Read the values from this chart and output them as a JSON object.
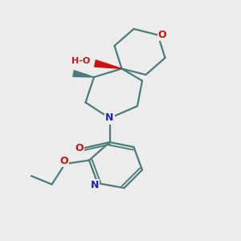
{
  "bg_color": "#ececec",
  "bond_color": "#4a7c7c",
  "bond_width": 1.6,
  "O_red": "#cc1111",
  "N_blue": "#2222bb",
  "figsize": [
    3.0,
    3.0
  ],
  "dpi": 100,
  "xlim": [
    0,
    10
  ],
  "ylim": [
    0,
    10
  ]
}
